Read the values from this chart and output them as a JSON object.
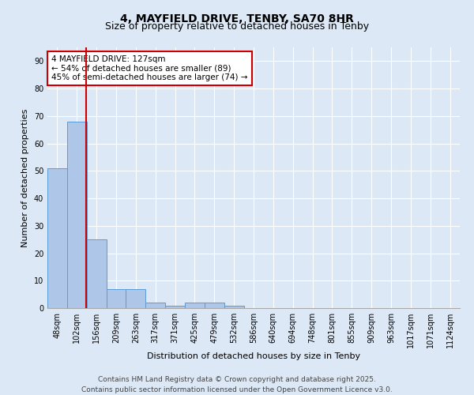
{
  "title": "4, MAYFIELD DRIVE, TENBY, SA70 8HR",
  "subtitle": "Size of property relative to detached houses in Tenby",
  "xlabel": "Distribution of detached houses by size in Tenby",
  "ylabel": "Number of detached properties",
  "bin_labels": [
    "48sqm",
    "102sqm",
    "156sqm",
    "209sqm",
    "263sqm",
    "317sqm",
    "371sqm",
    "425sqm",
    "479sqm",
    "532sqm",
    "586sqm",
    "640sqm",
    "694sqm",
    "748sqm",
    "801sqm",
    "855sqm",
    "909sqm",
    "963sqm",
    "1017sqm",
    "1071sqm",
    "1124sqm"
  ],
  "bar_heights": [
    51,
    68,
    25,
    7,
    7,
    2,
    1,
    2,
    2,
    1,
    0,
    0,
    0,
    0,
    0,
    0,
    0,
    0,
    0,
    0
  ],
  "bar_color": "#aec6e8",
  "bar_edge_color": "#5b9bd5",
  "annotation_text": "4 MAYFIELD DRIVE: 127sqm\n← 54% of detached houses are smaller (89)\n45% of semi-detached houses are larger (74) →",
  "annotation_box_color": "#ffffff",
  "annotation_box_edge_color": "#cc0000",
  "ylim": [
    0,
    95
  ],
  "yticks": [
    0,
    10,
    20,
    30,
    40,
    50,
    60,
    70,
    80,
    90
  ],
  "footer_text": "Contains HM Land Registry data © Crown copyright and database right 2025.\nContains public sector information licensed under the Open Government Licence v3.0.",
  "background_color": "#dce8f5",
  "grid_color": "#ffffff",
  "title_fontsize": 10,
  "axis_fontsize": 8,
  "tick_fontsize": 7,
  "footer_fontsize": 6.5,
  "property_sqm": 127,
  "bin_edges": [
    48,
    102,
    156,
    209,
    263,
    317,
    371,
    425,
    479,
    532,
    586,
    640,
    694,
    748,
    801,
    855,
    909,
    963,
    1017,
    1071,
    1124
  ]
}
